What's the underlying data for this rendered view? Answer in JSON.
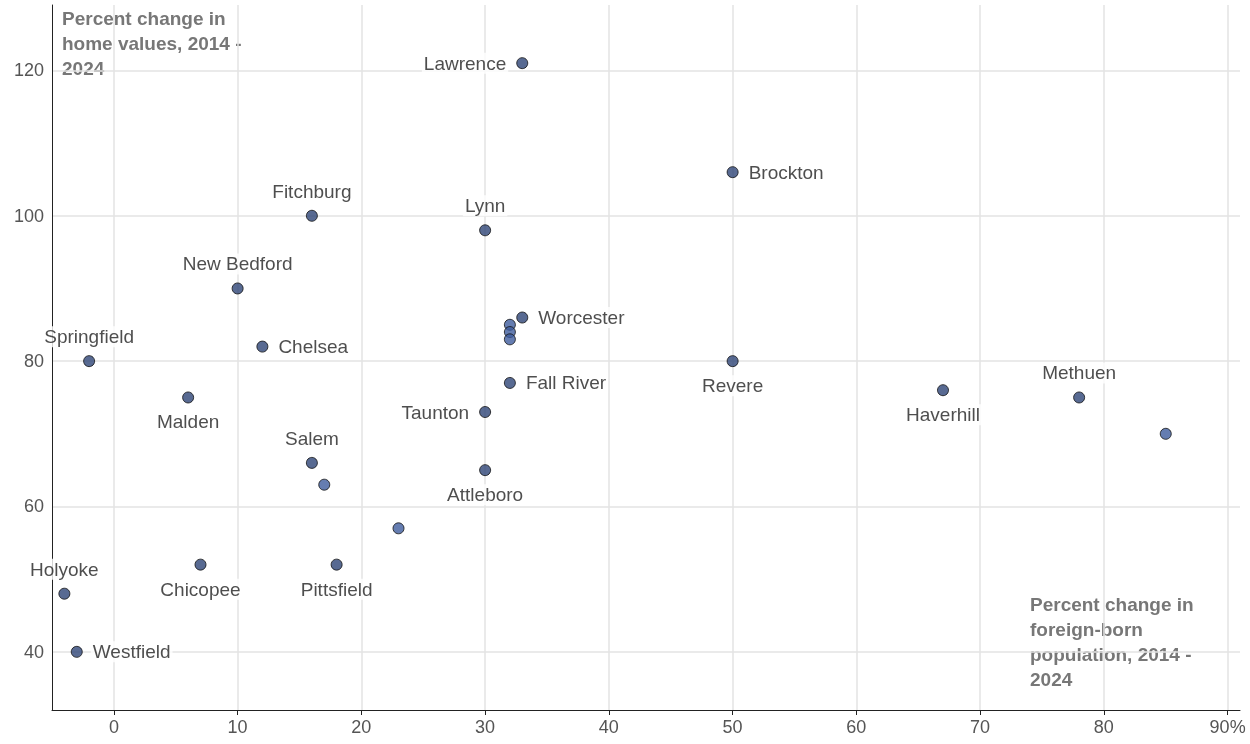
{
  "chart_data": {
    "type": "scatter",
    "xlabel": "Percent change in foreign-born population, 2014 - 2024",
    "ylabel": "Percent change in home values, 2014 - 2024",
    "x": [
      33,
      50,
      16,
      30,
      10,
      33,
      32,
      32,
      32,
      -2,
      12,
      50,
      6,
      32,
      30,
      67,
      78,
      85,
      16,
      17,
      30,
      23,
      7,
      18,
      -4,
      -3
    ],
    "values": [
      121,
      106,
      100,
      98,
      90,
      86,
      85,
      84,
      83,
      80,
      82,
      80,
      75,
      77,
      73,
      76,
      75,
      70,
      66,
      63,
      65,
      57,
      52,
      52,
      48,
      40
    ],
    "colors": [
      "#2e4577",
      "#2e4577",
      "#2e4577",
      "#2e4577",
      "#2e4577",
      "#2e4577",
      "#3f5c9e",
      "#3f5c9e",
      "#3f5c9e",
      "#2e4577",
      "#2e4577",
      "#2e4577",
      "#2e4577",
      "#2e4577",
      "#2e4577",
      "#2e4577",
      "#2e4577",
      "#3f5c9e",
      "#2e4577",
      "#3f5c9e",
      "#2e4577",
      "#3f5c9e",
      "#2e4577",
      "#2e4577",
      "#2e4577",
      "#2e4577"
    ],
    "annotations": [
      {
        "text": "Lawrence",
        "x": 33,
        "y": 121
      },
      {
        "text": "Brockton",
        "x": 50,
        "y": 106
      },
      {
        "text": "Fitchburg",
        "x": 16,
        "y": 100
      },
      {
        "text": "Lynn",
        "x": 30,
        "y": 98
      },
      {
        "text": "New Bedford",
        "x": 10,
        "y": 90
      },
      {
        "text": "Worcester",
        "x": 33,
        "y": 86
      },
      {
        "text": "Springfield",
        "x": -2,
        "y": 80
      },
      {
        "text": "Chelsea",
        "x": 12,
        "y": 82
      },
      {
        "text": "Revere",
        "x": 50,
        "y": 80
      },
      {
        "text": "Malden",
        "x": 6,
        "y": 75
      },
      {
        "text": "Fall River",
        "x": 32,
        "y": 77
      },
      {
        "text": "Taunton",
        "x": 30,
        "y": 73
      },
      {
        "text": "Haverhill",
        "x": 67,
        "y": 76
      },
      {
        "text": "Methuen",
        "x": 78,
        "y": 75
      },
      {
        "text": "Salem",
        "x": 16,
        "y": 66
      },
      {
        "text": "Attleboro",
        "x": 30,
        "y": 65
      },
      {
        "text": "Chicopee",
        "x": 7,
        "y": 52
      },
      {
        "text": "Pittsfield",
        "x": 18,
        "y": 52
      },
      {
        "text": "Holyoke",
        "x": -4,
        "y": 48
      },
      {
        "text": "Westfield",
        "x": -3,
        "y": 40
      }
    ],
    "xlim": [
      -5,
      91
    ],
    "xticks": [
      0,
      10,
      20,
      30,
      40,
      50,
      60,
      70,
      80,
      {
        "value": 90,
        "label": "90%"
      }
    ],
    "ylim": [
      32,
      129
    ],
    "yticks": [
      40,
      60,
      80,
      100,
      120
    ],
    "grid": true,
    "marker": "circle"
  }
}
